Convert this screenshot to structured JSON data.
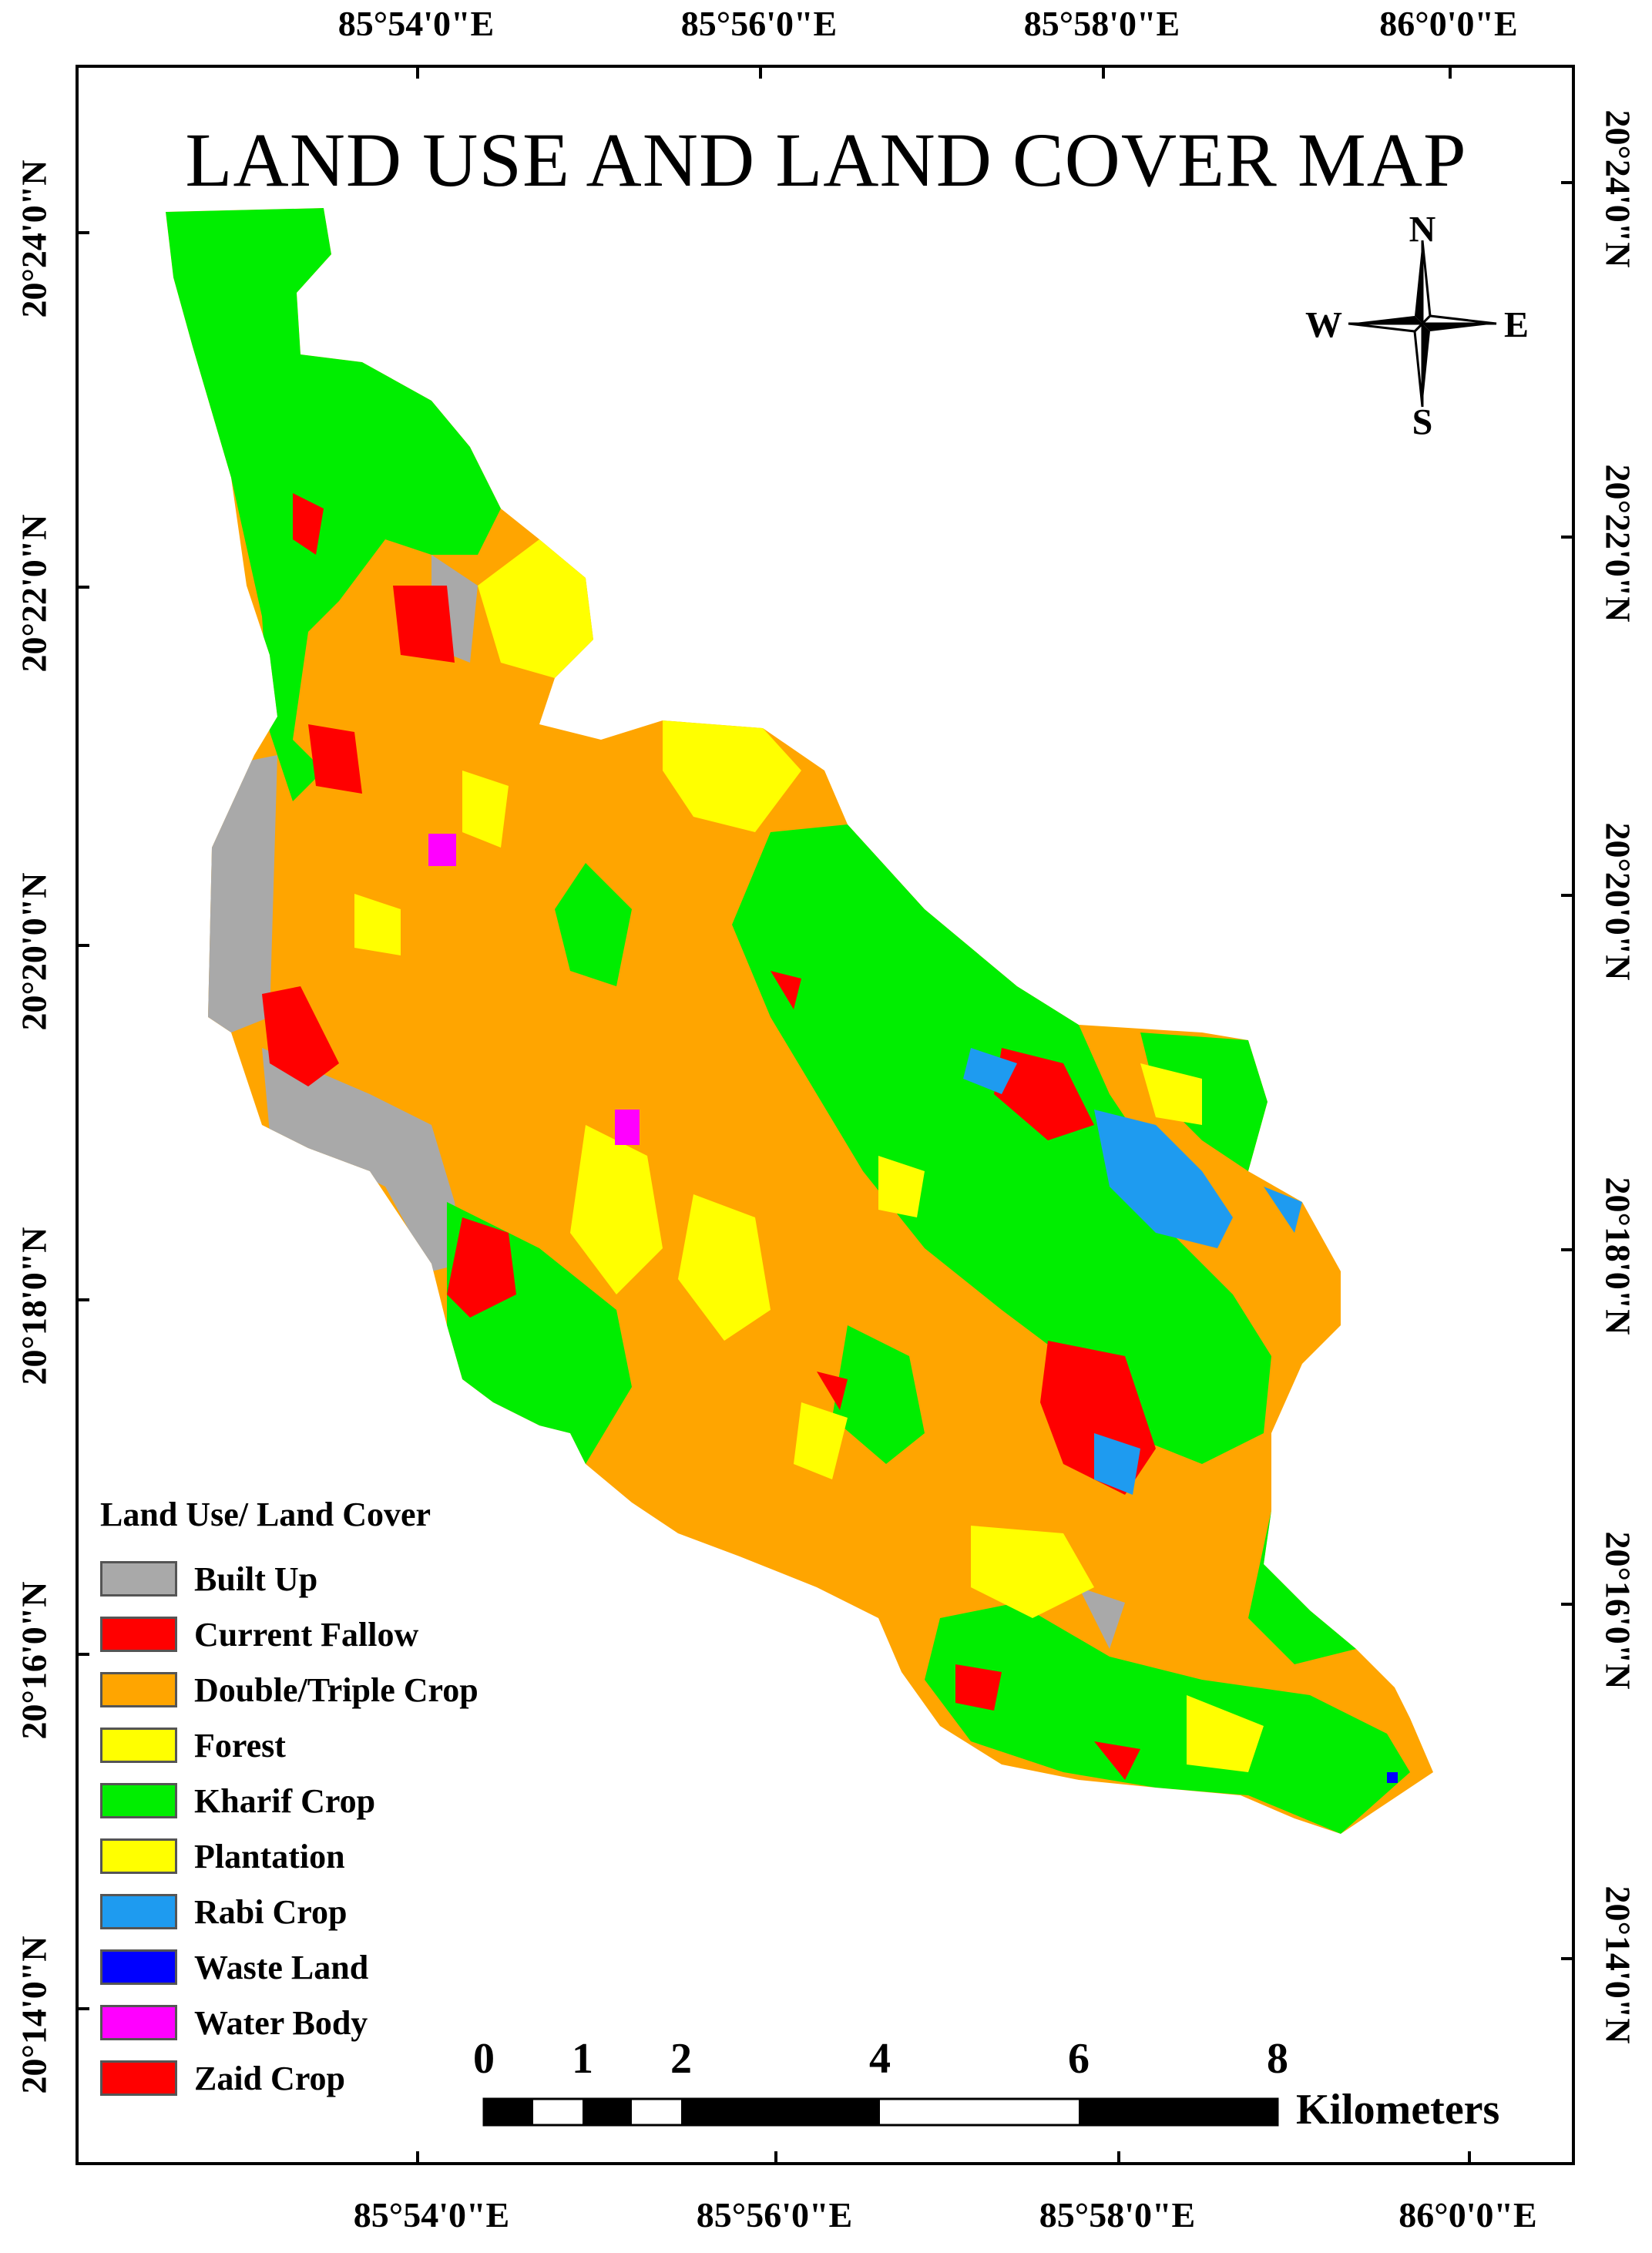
{
  "title": "LAND USE AND LAND COVER MAP",
  "coordinates": {
    "top": [
      "85°54'0\"E",
      "85°56'0\"E",
      "85°58'0\"E",
      "86°0'0\"E"
    ],
    "bottom": [
      "85°54'0\"E",
      "85°56'0\"E",
      "85°58'0\"E",
      "86°0'0\"E"
    ],
    "left": [
      "20°24'0\"N",
      "20°22'0\"N",
      "20°20'0\"N",
      "20°18'0\"N",
      "20°16'0\"N",
      "20°14'0\"N"
    ],
    "right": [
      "20°24'0\"N",
      "20°22'0\"N",
      "20°20'0\"N",
      "20°18'0\"N",
      "20°16'0\"N",
      "20°14'0\"N"
    ]
  },
  "north_arrow": {
    "n": "N",
    "s": "S",
    "e": "E",
    "w": "W"
  },
  "legend": {
    "title": "Land Use/ Land Cover",
    "items": [
      {
        "label": "Built Up",
        "color": "#a9a9a9"
      },
      {
        "label": "Current Fallow",
        "color": "#ff0000"
      },
      {
        "label": "Double/Triple Crop",
        "color": "#ffa500"
      },
      {
        "label": "Forest",
        "color": "#ffff00"
      },
      {
        "label": "Kharif Crop",
        "color": "#00ee00"
      },
      {
        "label": "Plantation",
        "color": "#ffff00"
      },
      {
        "label": "Rabi Crop",
        "color": "#1e9bf0"
      },
      {
        "label": "Waste Land",
        "color": "#0000ff"
      },
      {
        "label": "Water Body",
        "color": "#ff00ff"
      },
      {
        "label": "Zaid Crop",
        "color": "#ff0000"
      }
    ]
  },
  "scale_bar": {
    "labels": [
      "0",
      "1",
      "2",
      "4",
      "6",
      "8"
    ],
    "unit": "Kilometers"
  }
}
